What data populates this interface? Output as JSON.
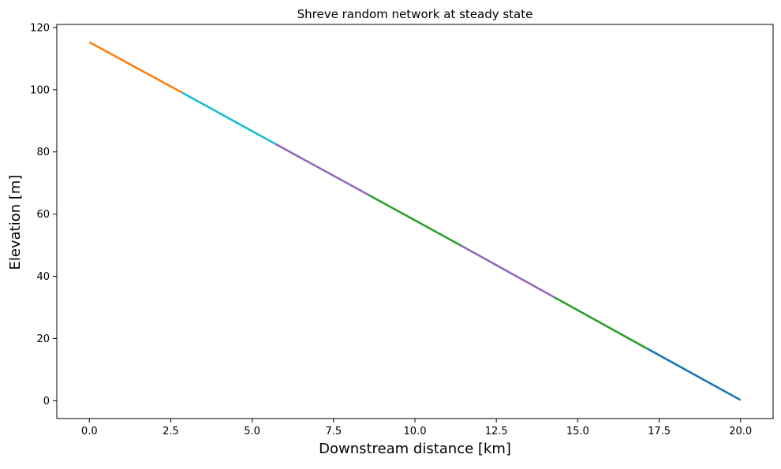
{
  "chart_data": {
    "type": "line",
    "title": "Shreve random network at steady state",
    "xlabel": "Downstream distance [km]",
    "ylabel": "Elevation [m]",
    "xlim": [
      -1.0,
      21.0
    ],
    "ylim": [
      -5.75,
      121.0
    ],
    "xticks": [
      "0.0",
      "2.5",
      "5.0",
      "7.5",
      "10.0",
      "12.5",
      "15.0",
      "17.5",
      "20.0"
    ],
    "yticks": [
      "0",
      "20",
      "40",
      "60",
      "80",
      "100",
      "120"
    ],
    "grid": false,
    "legend": "none",
    "series": [
      {
        "color": "#ff7f0e",
        "x": [
          0.0,
          2.86
        ],
        "y": [
          115.3,
          99.0
        ]
      },
      {
        "color": "#17becf",
        "x": [
          2.86,
          5.71
        ],
        "y": [
          99.0,
          82.6
        ]
      },
      {
        "color": "#9467bd",
        "x": [
          5.71,
          8.57
        ],
        "y": [
          82.6,
          66.2
        ]
      },
      {
        "color": "#2ca02c",
        "x": [
          8.57,
          11.43
        ],
        "y": [
          66.2,
          49.8
        ]
      },
      {
        "color": "#9467bd",
        "x": [
          11.43,
          14.29
        ],
        "y": [
          49.8,
          33.2
        ]
      },
      {
        "color": "#2ca02c",
        "x": [
          14.29,
          17.14
        ],
        "y": [
          33.2,
          16.7
        ]
      },
      {
        "color": "#1f77b4",
        "x": [
          17.14,
          20.0
        ],
        "y": [
          16.7,
          0.2
        ]
      }
    ]
  }
}
